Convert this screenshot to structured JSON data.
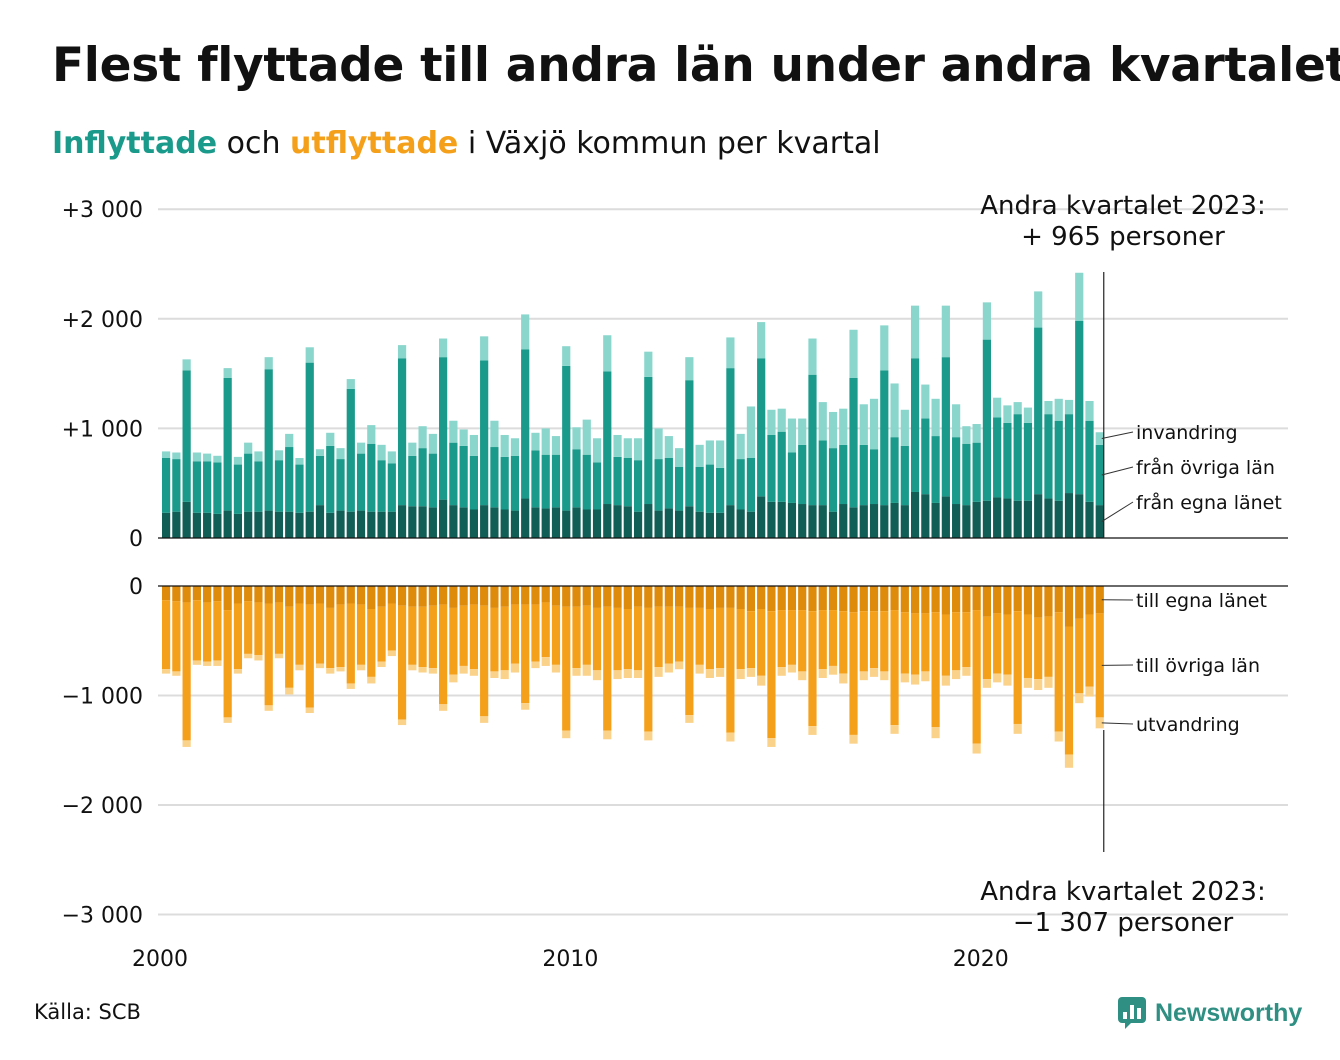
{
  "title": "Flest flyttade till andra län under andra kvartalet",
  "subtitle": {
    "inflyttade": "Inflyttade",
    "och": "och",
    "utflyttade": "utflyttade",
    "rest": "i Växjö kommun per kvartal"
  },
  "source": "Källa: SCB",
  "logo_text": "Newsworthy",
  "colors": {
    "in_egna": "#115e56",
    "in_ovriga": "#1a9a8a",
    "in_invandring": "#8ad6cd",
    "out_egna": "#de8a0a",
    "out_ovriga": "#f5a01a",
    "out_utvandring": "#fbd28a",
    "brand": "#2f8f83"
  },
  "chart_data": {
    "type": "bar",
    "stacked": true,
    "x_start": 2000,
    "frequency": "quarterly",
    "x_ticks": [
      "2000",
      "2010",
      "2020"
    ],
    "top": {
      "ylim": [
        0,
        3000
      ],
      "y_ticks": [
        "0",
        "+1 000",
        "+2 000",
        "+3 000"
      ],
      "legend": [
        "från egna länet",
        "från övriga län",
        "invandring"
      ],
      "annotation": [
        "Andra kvartalet 2023:",
        "+  965 personer"
      ],
      "series": [
        {
          "name": "från egna länet",
          "values": [
            230,
            240,
            330,
            230,
            230,
            220,
            250,
            220,
            240,
            240,
            250,
            240,
            240,
            230,
            240,
            300,
            230,
            250,
            240,
            250,
            240,
            240,
            240,
            300,
            290,
            290,
            280,
            350,
            300,
            280,
            260,
            300,
            280,
            260,
            250,
            360,
            280,
            270,
            280,
            250,
            280,
            260,
            260,
            310,
            300,
            290,
            240,
            310,
            250,
            270,
            250,
            290,
            240,
            230,
            230,
            300,
            260,
            240,
            380,
            330,
            330,
            320,
            310,
            300,
            300,
            240,
            310,
            280,
            300,
            310,
            300,
            320,
            300,
            420,
            400,
            320,
            380,
            310,
            300,
            330,
            340,
            370,
            360,
            340,
            340,
            400,
            360,
            340,
            410,
            400,
            330,
            300
          ]
        },
        {
          "name": "från övriga län",
          "values": [
            500,
            480,
            1200,
            470,
            470,
            470,
            1210,
            450,
            530,
            460,
            1290,
            470,
            590,
            440,
            1360,
            450,
            610,
            470,
            1120,
            520,
            620,
            470,
            440,
            1340,
            460,
            530,
            490,
            1300,
            570,
            560,
            490,
            1320,
            550,
            480,
            500,
            1360,
            520,
            490,
            480,
            1320,
            530,
            500,
            430,
            1210,
            440,
            440,
            470,
            1160,
            470,
            460,
            400,
            1150,
            410,
            440,
            410,
            1250,
            460,
            490,
            1260,
            610,
            640,
            460,
            540,
            1190,
            590,
            580,
            540,
            1180,
            550,
            500,
            1230,
            600,
            540,
            1220,
            690,
            610,
            1270,
            610,
            560,
            540,
            1470,
            730,
            690,
            790,
            710,
            1520,
            770,
            730,
            720,
            1580,
            740,
            550
          ]
        },
        {
          "name": "invandring",
          "values": [
            60,
            60,
            100,
            80,
            70,
            60,
            90,
            70,
            100,
            90,
            110,
            90,
            120,
            60,
            140,
            60,
            120,
            100,
            90,
            100,
            170,
            140,
            110,
            120,
            120,
            200,
            180,
            170,
            200,
            150,
            190,
            220,
            240,
            200,
            160,
            320,
            160,
            240,
            170,
            180,
            200,
            320,
            220,
            330,
            200,
            180,
            200,
            230,
            280,
            200,
            170,
            210,
            200,
            220,
            250,
            280,
            230,
            470,
            330,
            230,
            210,
            310,
            240,
            330,
            350,
            330,
            330,
            440,
            370,
            460,
            410,
            490,
            330,
            480,
            310,
            340,
            470,
            300,
            160,
            170,
            340,
            180,
            160,
            110,
            140,
            330,
            120,
            200,
            130,
            440,
            180,
            115
          ]
        }
      ]
    },
    "bottom": {
      "ylim": [
        -3000,
        0
      ],
      "y_ticks": [
        "0",
        "−1 000",
        "−2 000",
        "−3 000"
      ],
      "legend": [
        "till egna länet",
        "till övriga län",
        "utvandring"
      ],
      "annotation": [
        "Andra kvartalet 2023:",
        "−1 307 personer"
      ],
      "series": [
        {
          "name": "till egna länet",
          "values": [
            -130,
            -140,
            -150,
            -130,
            -150,
            -140,
            -220,
            -160,
            -140,
            -150,
            -160,
            -150,
            -190,
            -160,
            -170,
            -160,
            -200,
            -170,
            -160,
            -170,
            -210,
            -190,
            -160,
            -180,
            -190,
            -190,
            -180,
            -170,
            -200,
            -180,
            -170,
            -180,
            -200,
            -190,
            -170,
            -170,
            -170,
            -150,
            -180,
            -190,
            -190,
            -180,
            -200,
            -190,
            -200,
            -210,
            -190,
            -200,
            -190,
            -190,
            -190,
            -200,
            -200,
            -210,
            -200,
            -200,
            -210,
            -230,
            -210,
            -230,
            -220,
            -220,
            -220,
            -230,
            -220,
            -220,
            -230,
            -240,
            -230,
            -230,
            -230,
            -220,
            -240,
            -250,
            -250,
            -240,
            -260,
            -240,
            -240,
            -220,
            -280,
            -250,
            -260,
            -230,
            -260,
            -290,
            -280,
            -240,
            -370,
            -300,
            -260,
            -250
          ]
        },
        {
          "name": "till övriga län",
          "values": [
            -630,
            -640,
            -1260,
            -550,
            -540,
            -540,
            -980,
            -600,
            -480,
            -480,
            -930,
            -470,
            -740,
            -560,
            -940,
            -550,
            -550,
            -570,
            -730,
            -550,
            -620,
            -500,
            -430,
            -1040,
            -530,
            -550,
            -570,
            -910,
            -610,
            -550,
            -590,
            -1010,
            -580,
            -580,
            -540,
            -900,
            -520,
            -500,
            -540,
            -1130,
            -560,
            -540,
            -570,
            -1130,
            -570,
            -550,
            -580,
            -1130,
            -550,
            -520,
            -500,
            -980,
            -520,
            -550,
            -550,
            -1140,
            -550,
            -520,
            -610,
            -1160,
            -520,
            -500,
            -560,
            -1050,
            -540,
            -510,
            -570,
            -1120,
            -550,
            -520,
            -550,
            -1050,
            -560,
            -560,
            -530,
            -1050,
            -560,
            -530,
            -500,
            -1220,
            -570,
            -550,
            -550,
            -1030,
            -580,
            -560,
            -550,
            -1090,
            -1170,
            -680,
            -660,
            -950
          ]
        },
        {
          "name": "utvandring",
          "values": [
            -40,
            -40,
            -60,
            -40,
            -40,
            -50,
            -50,
            -40,
            -40,
            -50,
            -50,
            -40,
            -60,
            -50,
            -50,
            -40,
            -50,
            -40,
            -50,
            -50,
            -60,
            -50,
            -50,
            -50,
            -50,
            -50,
            -50,
            -60,
            -70,
            -70,
            -60,
            -60,
            -60,
            -80,
            -80,
            -60,
            -60,
            -80,
            -70,
            -70,
            -70,
            -100,
            -90,
            -80,
            -80,
            -80,
            -70,
            -80,
            -90,
            -80,
            -70,
            -70,
            -80,
            -80,
            -80,
            -80,
            -90,
            -80,
            -90,
            -80,
            -80,
            -70,
            -80,
            -80,
            -80,
            -80,
            -90,
            -80,
            -80,
            -80,
            -80,
            -80,
            -80,
            -90,
            -90,
            -100,
            -90,
            -80,
            -80,
            -90,
            -80,
            -80,
            -100,
            -90,
            -90,
            -100,
            -100,
            -90,
            -120,
            -90,
            -90,
            -100
          ]
        }
      ]
    }
  }
}
